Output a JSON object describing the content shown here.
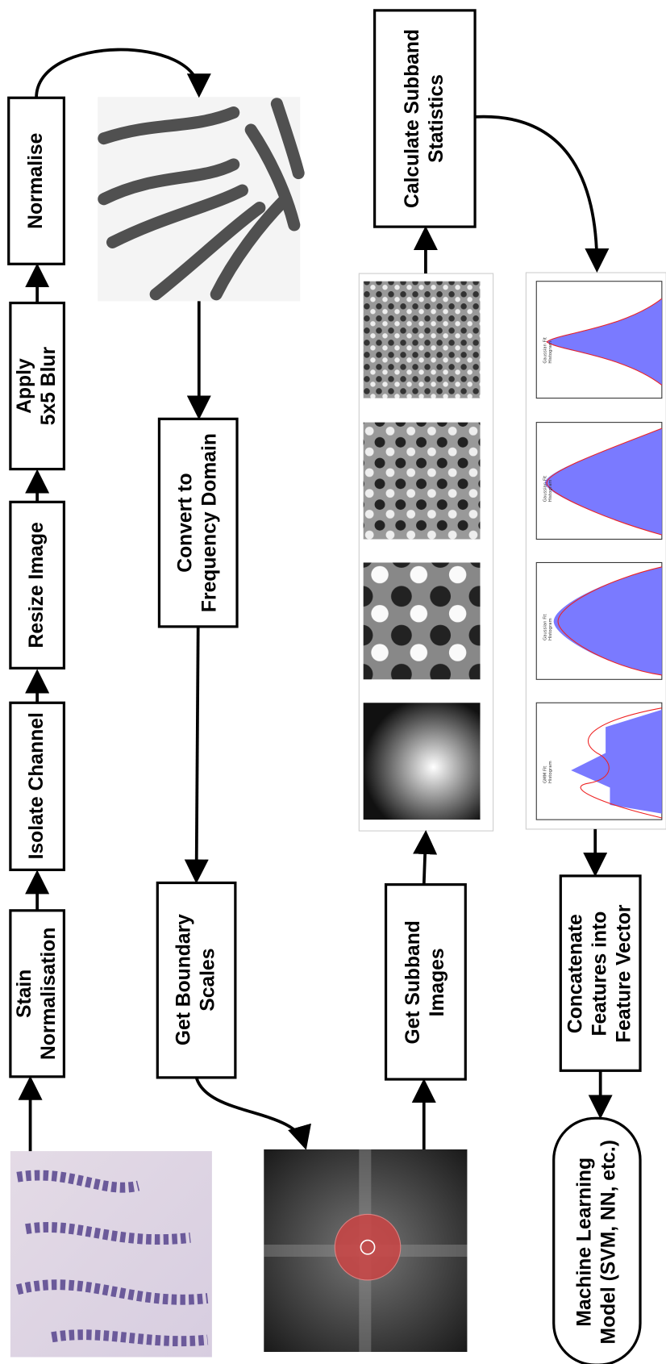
{
  "nodes": [
    {
      "label": [
        "Normalise"
      ]
    },
    {
      "label": [
        "Apply",
        "5x5 Blur"
      ]
    },
    {
      "label": [
        "Resize Image"
      ]
    },
    {
      "label": [
        "Isolate Channel"
      ]
    },
    {
      "label": [
        "Stain",
        "Normalisation"
      ]
    },
    {
      "label": [
        "Convert to",
        "Frequency Domain"
      ]
    },
    {
      "label": [
        "Get Boundary",
        "Scales"
      ]
    },
    {
      "label": [
        "Calculate Subband",
        "Statistics"
      ]
    },
    {
      "label": [
        "Get Subband",
        "Images"
      ]
    },
    {
      "label": [
        "Concatenate",
        "Features into",
        "Feature Vector"
      ]
    },
    {
      "label": [
        "Machine Learning",
        "Model (SVM, NN, etc.)"
      ]
    }
  ],
  "histograms": [
    {
      "fit": "GMM Fit",
      "hist": "Histogram"
    },
    {
      "fit": "Gaussian Fit",
      "hist": "Histogram"
    },
    {
      "fit": "Gaussian Fit",
      "hist": "Histogram"
    },
    {
      "fit": "Gaussian Fit",
      "hist": "Histogram"
    }
  ]
}
